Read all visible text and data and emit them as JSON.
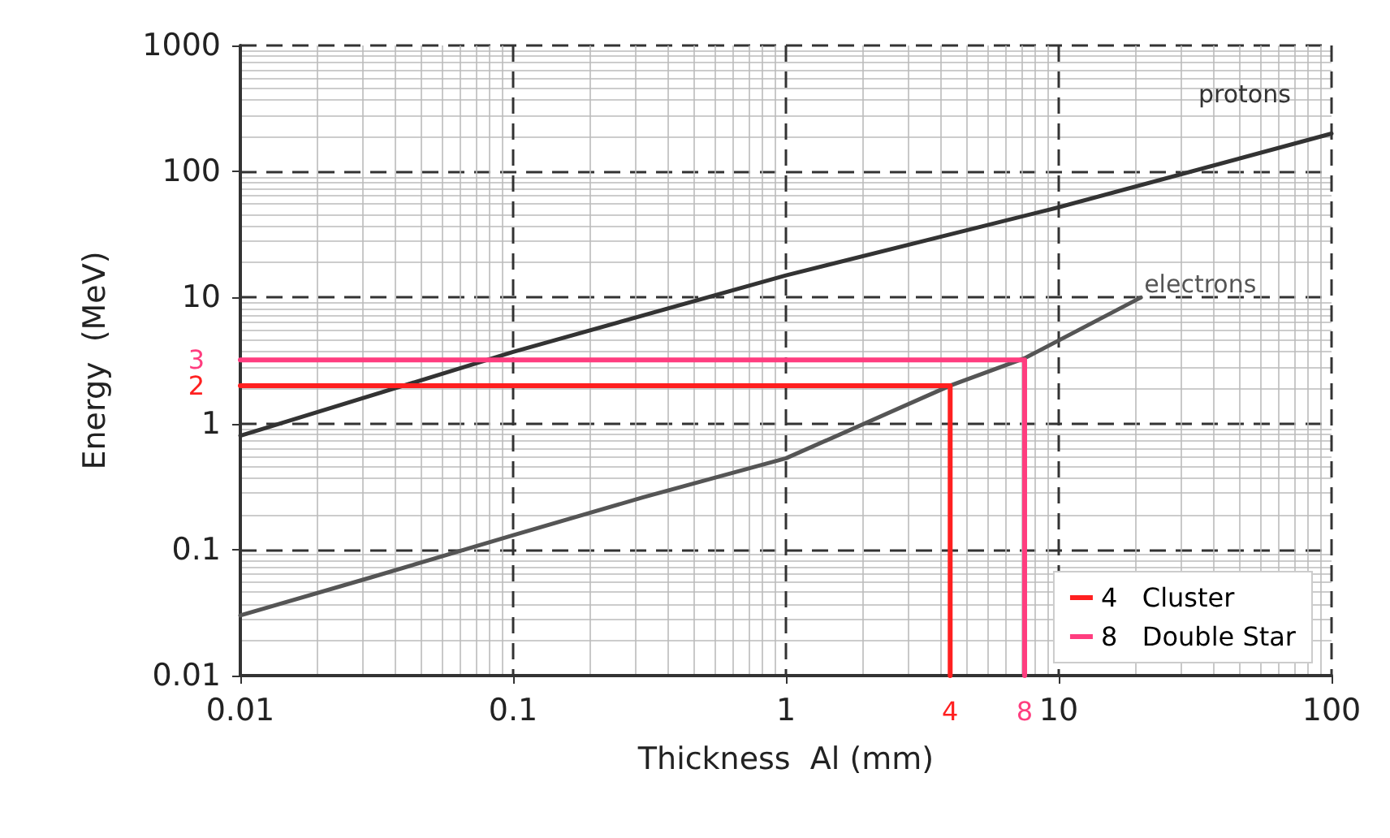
{
  "chart_data": {
    "type": "line",
    "xlabel": "Thickness  Al (mm)",
    "ylabel": "Energy  (MeV)",
    "log": "xy",
    "xlim": [
      0.01,
      100
    ],
    "xticks": [
      0.01,
      0.1,
      1,
      10,
      100
    ],
    "ylim": [
      0.01,
      1000
    ],
    "yticks": [
      0.01,
      0.1,
      1,
      10,
      100,
      1000
    ],
    "grid": true,
    "legend": "bottom right",
    "line_style": "solid",
    "marker": "none",
    "series": [
      {
        "name": "protons",
        "color": "#333333",
        "x": [
          0.01,
          0.1,
          1,
          10,
          100
        ],
        "values": [
          0.8,
          3.7,
          15,
          52,
          200
        ]
      },
      {
        "name": "electrons",
        "color": "#555555",
        "x": [
          0.01,
          0.03,
          0.1,
          0.3,
          1,
          4,
          7.5,
          20
        ],
        "values": [
          0.03,
          0.06,
          0.13,
          0.26,
          0.53,
          2,
          3.3,
          10
        ]
      },
      {
        "name": "4   Cluster",
        "color": "#ff2020",
        "x": [
          0.01,
          4,
          4
        ],
        "values": [
          2,
          2,
          0.01
        ]
      },
      {
        "name": "8   Double Star",
        "color": "#ff3d7f",
        "x": [
          0.01,
          7.5,
          7.5
        ],
        "values": [
          3.2,
          3.2,
          0.01
        ]
      }
    ],
    "annotations": [
      {
        "text": "3",
        "x": 0.01,
        "y": 3.2
      },
      {
        "text": "2",
        "x": 0.01,
        "y": 2
      },
      {
        "text": "4",
        "x": 4,
        "y": 0.01
      },
      {
        "text": "8",
        "x": 7.5,
        "y": 0.01
      }
    ]
  }
}
